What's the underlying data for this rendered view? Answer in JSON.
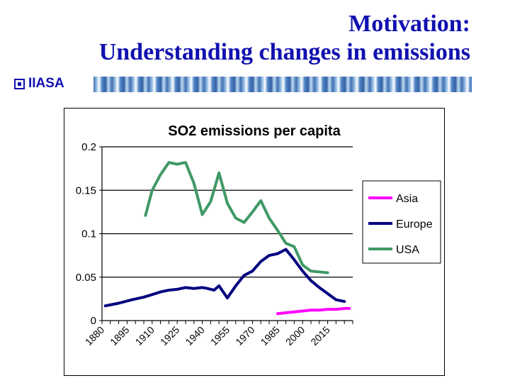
{
  "slide": {
    "title_line1": "Motivation:",
    "title_line2": "Understanding changes in emissions",
    "brand": "IIASA"
  },
  "colors": {
    "title": "#1010b0",
    "asia": "#ff00ff",
    "europe": "#000080",
    "usa": "#3f9966"
  },
  "chart_data": {
    "type": "line",
    "title": "SO2 emissions per capita",
    "xlabel": "",
    "ylabel": "",
    "x_ticks": [
      "1880",
      "1895",
      "1910",
      "1925",
      "1940",
      "1955",
      "1970",
      "1985",
      "2000",
      "2015"
    ],
    "x_range": [
      1880,
      2030
    ],
    "y_ticks": [
      "0",
      "0.05",
      "0.1",
      "0.15",
      "0.2"
    ],
    "ylim": [
      0,
      0.2
    ],
    "grid": "horizontal",
    "legend_position": "right",
    "series": [
      {
        "name": "Asia",
        "color": "#ff00ff",
        "x": [
          1985,
          1990,
          1995,
          2000,
          2005,
          2010,
          2015,
          2020,
          2025,
          2028
        ],
        "y": [
          0.008,
          0.009,
          0.01,
          0.011,
          0.012,
          0.012,
          0.013,
          0.013,
          0.014,
          0.014
        ]
      },
      {
        "name": "Europe",
        "color": "#000080",
        "x": [
          1882,
          1890,
          1898,
          1905,
          1910,
          1915,
          1920,
          1925,
          1930,
          1935,
          1940,
          1943,
          1947,
          1950,
          1955,
          1960,
          1965,
          1970,
          1975,
          1980,
          1985,
          1990,
          1995,
          2000,
          2005,
          2010,
          2015,
          2020,
          2025
        ],
        "y": [
          0.017,
          0.02,
          0.024,
          0.027,
          0.03,
          0.033,
          0.035,
          0.036,
          0.038,
          0.037,
          0.038,
          0.037,
          0.035,
          0.04,
          0.026,
          0.04,
          0.052,
          0.057,
          0.068,
          0.075,
          0.077,
          0.082,
          0.07,
          0.057,
          0.046,
          0.038,
          0.031,
          0.024,
          0.022
        ]
      },
      {
        "name": "USA",
        "color": "#3f9966",
        "x": [
          1906,
          1910,
          1915,
          1920,
          1925,
          1930,
          1935,
          1940,
          1945,
          1950,
          1955,
          1960,
          1965,
          1970,
          1975,
          1980,
          1985,
          1990,
          1995,
          2000,
          2005,
          2010,
          2015
        ],
        "y": [
          0.121,
          0.15,
          0.168,
          0.182,
          0.18,
          0.182,
          0.158,
          0.122,
          0.137,
          0.17,
          0.135,
          0.118,
          0.113,
          0.125,
          0.138,
          0.118,
          0.104,
          0.089,
          0.085,
          0.064,
          0.057,
          0.056,
          0.055
        ]
      }
    ]
  }
}
